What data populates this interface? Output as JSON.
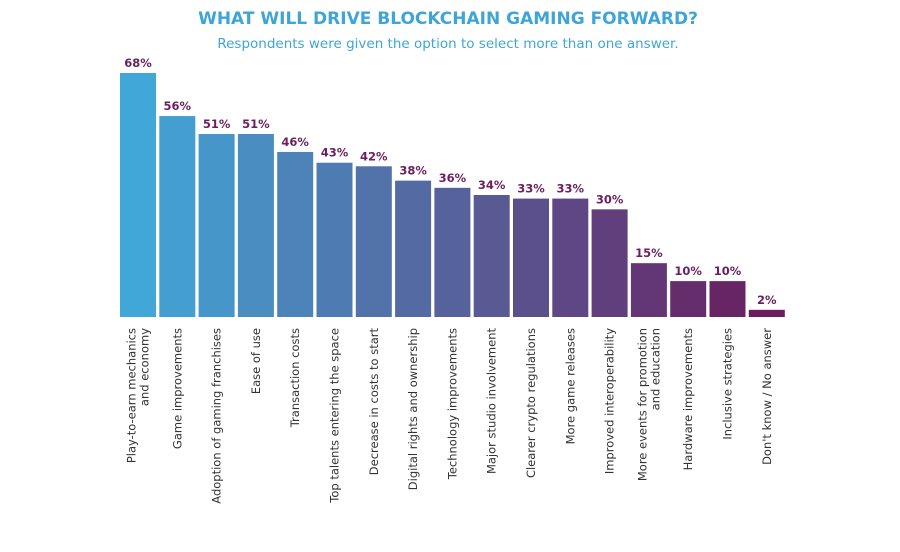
{
  "chart_data": {
    "type": "bar",
    "title": "WHAT WILL DRIVE BLOCKCHAIN GAMING FORWARD?",
    "subtitle": "Respondents were given the option to select more than one answer.",
    "categories": [
      "Play-to-earn mechanics\nand economy",
      "Game improvements",
      "Adoption of gaming franchises",
      "Ease of use",
      "Transaction costs",
      "Top talents entering the space",
      "Decrease in costs to start",
      "Digital rights and ownership",
      "Technology improvements",
      "Major studio involvement",
      "Clearer crypto regulations",
      "More game releases",
      "Improved interoperability",
      "More events for promotion\nand education",
      "Hardware improvements",
      "Inclusive strategies",
      "Don't know / No answer"
    ],
    "values": [
      68,
      56,
      51,
      51,
      46,
      43,
      42,
      38,
      36,
      34,
      33,
      33,
      30,
      15,
      10,
      10,
      2
    ],
    "labels": [
      "68%",
      "56%",
      "51%",
      "51%",
      "46%",
      "43%",
      "42%",
      "38%",
      "36%",
      "34%",
      "33%",
      "33%",
      "30%",
      "15%",
      "10%",
      "10%",
      "2%"
    ],
    "unit": "%",
    "ylim": [
      0,
      68
    ],
    "grid": false,
    "colors": {
      "start": "#41a7d8",
      "end": "#6b1c5e",
      "value_label": "#6b1f5f",
      "title": "#3fa5d6"
    }
  }
}
